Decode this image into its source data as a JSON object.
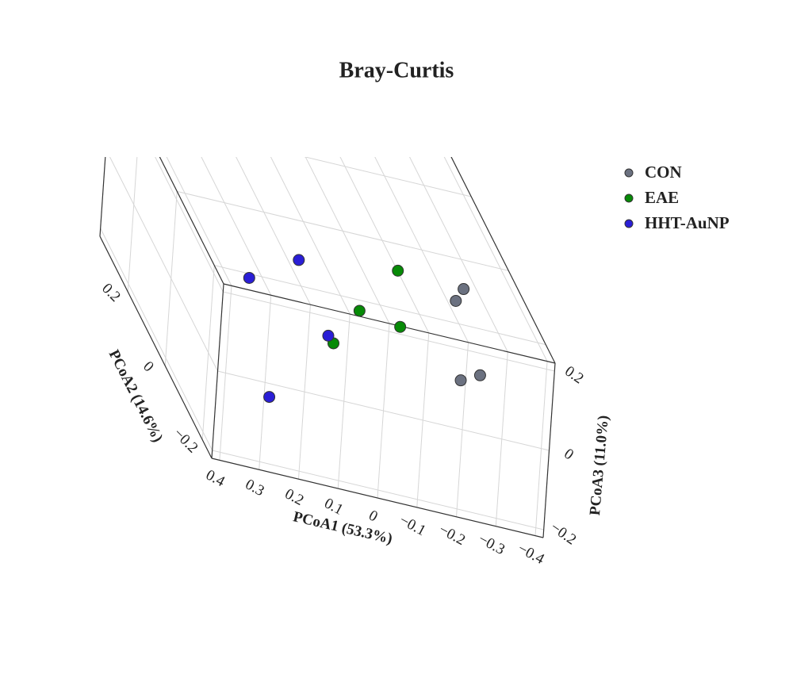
{
  "chart_data": {
    "type": "scatter3d",
    "title": "Bray-Curtis",
    "xlabel": "PCoA1 (53.3%)",
    "ylabel": "PCoA2 (14.6%)",
    "zlabel": "PCoA3 (11.0%)",
    "xlim": [
      -0.42,
      0.42
    ],
    "ylim": [
      -0.25,
      0.35
    ],
    "zlim": [
      -0.22,
      0.22
    ],
    "xticks": [
      {
        "value": -0.4,
        "label": "−0.4"
      },
      {
        "value": -0.3,
        "label": "−0.3"
      },
      {
        "value": -0.2,
        "label": "−0.2"
      },
      {
        "value": -0.1,
        "label": "−0.1"
      },
      0,
      0.1,
      0.2,
      0.3,
      0.4
    ],
    "yticks": [
      {
        "value": -0.2,
        "label": "−0.2"
      },
      0,
      0.2
    ],
    "zticks": [
      {
        "value": -0.2,
        "label": "−0.2"
      },
      0,
      0.2
    ],
    "grid": true,
    "legend": "top-right",
    "series": [
      {
        "name": "CON",
        "color": "#6b7180",
        "x": [
          -0.29,
          -0.27,
          -0.33,
          -0.28
        ],
        "y": [
          -0.04,
          -0.045,
          -0.07,
          -0.075
        ],
        "z": [
          0.18,
          0.15,
          0,
          -0.02
        ]
      },
      {
        "name": "EAE",
        "color": "#078a07",
        "x": [
          -0.16,
          -0.05,
          -0.17,
          0.02
        ],
        "y": [
          0.03,
          -0.01,
          0.02,
          -0.03
        ],
        "z": [
          0.13,
          0.04,
          0,
          -0.04
        ]
      },
      {
        "name": "HHT-AuNP",
        "color": "#2a1ed6",
        "x": [
          0.11,
          0.22,
          0.05,
          0.25
        ],
        "y": [
          -0.01,
          0.01,
          -0.06,
          -0.18
        ],
        "z": [
          0.13,
          0.04,
          0,
          -0.09
        ]
      }
    ]
  }
}
